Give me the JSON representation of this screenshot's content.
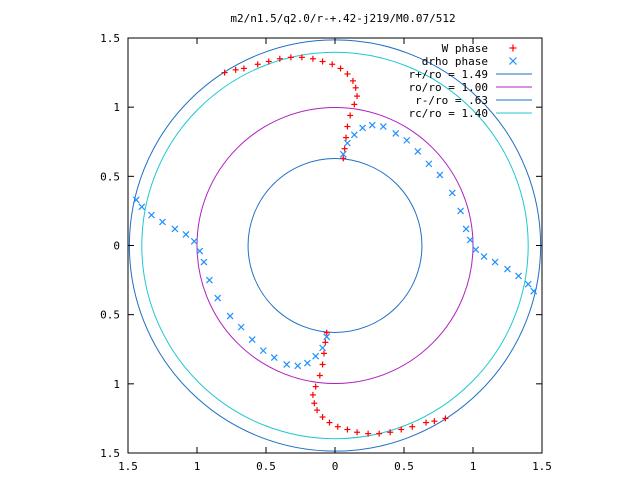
{
  "chart_data": {
    "type": "scatter",
    "title": "m2/n1.5/q2.0/r-+.42-j219/M0.07/512",
    "xlabel": "",
    "ylabel": "",
    "xlim": [
      -1.5,
      1.5
    ],
    "ylim": [
      -1.5,
      1.5
    ],
    "x_tick_values": [
      -1.5,
      -1,
      -0.5,
      0,
      0.5,
      1,
      1.5
    ],
    "x_tick_labels": [
      "1.5",
      "1",
      "0.5",
      "0",
      "0.5",
      "1",
      "1.5"
    ],
    "y_tick_values": [
      1.5,
      1,
      0.5,
      0,
      -0.5,
      -1,
      -1.5
    ],
    "y_tick_labels": [
      "1.5",
      "1",
      "0.5",
      "0",
      "0.5",
      "1",
      "1.5"
    ],
    "grid": false,
    "legend_position": "top-right",
    "circles": [
      {
        "name": "r+/ro = 1.49",
        "radius": 1.49,
        "color": "#1f6fc4"
      },
      {
        "name": "ro/ro = 1.00",
        "radius": 1.0,
        "color": "#b020c0"
      },
      {
        "name": "r-/ro = .63",
        "radius": 0.63,
        "color": "#1f6fc4"
      },
      {
        "name": "rc/ro = 1.40",
        "radius": 1.4,
        "color": "#20c8d0"
      }
    ],
    "series": [
      {
        "name": "W phase",
        "marker": "plus",
        "color": "#ff0000",
        "points": [
          [
            0.06,
            0.63
          ],
          [
            0.07,
            0.7
          ],
          [
            0.08,
            0.78
          ],
          [
            0.09,
            0.86
          ],
          [
            0.11,
            0.94
          ],
          [
            0.14,
            1.02
          ],
          [
            0.16,
            1.08
          ],
          [
            0.15,
            1.14
          ],
          [
            0.13,
            1.19
          ],
          [
            0.09,
            1.24
          ],
          [
            0.04,
            1.28
          ],
          [
            -0.02,
            1.31
          ],
          [
            -0.09,
            1.33
          ],
          [
            -0.16,
            1.35
          ],
          [
            -0.24,
            1.36
          ],
          [
            -0.32,
            1.36
          ],
          [
            -0.4,
            1.35
          ],
          [
            -0.48,
            1.33
          ],
          [
            -0.56,
            1.31
          ],
          [
            -0.66,
            1.28
          ],
          [
            -0.72,
            1.27
          ],
          [
            -0.8,
            1.25
          ],
          [
            -0.06,
            -0.63
          ],
          [
            -0.07,
            -0.7
          ],
          [
            -0.08,
            -0.78
          ],
          [
            -0.09,
            -0.86
          ],
          [
            -0.11,
            -0.94
          ],
          [
            -0.14,
            -1.02
          ],
          [
            -0.16,
            -1.08
          ],
          [
            -0.15,
            -1.14
          ],
          [
            -0.13,
            -1.19
          ],
          [
            -0.09,
            -1.24
          ],
          [
            -0.04,
            -1.28
          ],
          [
            0.02,
            -1.31
          ],
          [
            0.09,
            -1.33
          ],
          [
            0.16,
            -1.35
          ],
          [
            0.24,
            -1.36
          ],
          [
            0.32,
            -1.36
          ],
          [
            0.4,
            -1.35
          ],
          [
            0.48,
            -1.33
          ],
          [
            0.56,
            -1.31
          ],
          [
            0.66,
            -1.28
          ],
          [
            0.72,
            -1.27
          ],
          [
            0.8,
            -1.25
          ]
        ]
      },
      {
        "name": "drho phase",
        "marker": "x",
        "color": "#1e90ff",
        "points": [
          [
            0.06,
            0.66
          ],
          [
            0.09,
            0.74
          ],
          [
            0.14,
            0.8
          ],
          [
            0.2,
            0.85
          ],
          [
            0.27,
            0.87
          ],
          [
            0.35,
            0.86
          ],
          [
            0.44,
            0.81
          ],
          [
            0.52,
            0.76
          ],
          [
            0.6,
            0.68
          ],
          [
            0.68,
            0.59
          ],
          [
            0.76,
            0.51
          ],
          [
            0.85,
            0.38
          ],
          [
            0.91,
            0.25
          ],
          [
            0.95,
            0.12
          ],
          [
            0.98,
            0.04
          ],
          [
            1.02,
            -0.03
          ],
          [
            1.08,
            -0.08
          ],
          [
            1.16,
            -0.12
          ],
          [
            1.25,
            -0.17
          ],
          [
            1.33,
            -0.22
          ],
          [
            1.4,
            -0.28
          ],
          [
            1.44,
            -0.33
          ],
          [
            -0.06,
            -0.66
          ],
          [
            -0.09,
            -0.74
          ],
          [
            -0.14,
            -0.8
          ],
          [
            -0.2,
            -0.85
          ],
          [
            -0.27,
            -0.87
          ],
          [
            -0.35,
            -0.86
          ],
          [
            -0.44,
            -0.81
          ],
          [
            -0.52,
            -0.76
          ],
          [
            -0.6,
            -0.68
          ],
          [
            -0.68,
            -0.59
          ],
          [
            -0.76,
            -0.51
          ],
          [
            -0.85,
            -0.38
          ],
          [
            -0.91,
            -0.25
          ],
          [
            -0.95,
            -0.12
          ],
          [
            -0.98,
            -0.04
          ],
          [
            -1.02,
            0.03
          ],
          [
            -1.08,
            0.08
          ],
          [
            -1.16,
            0.12
          ],
          [
            -1.25,
            0.17
          ],
          [
            -1.33,
            0.22
          ],
          [
            -1.4,
            0.28
          ],
          [
            -1.44,
            0.33
          ]
        ]
      }
    ]
  }
}
